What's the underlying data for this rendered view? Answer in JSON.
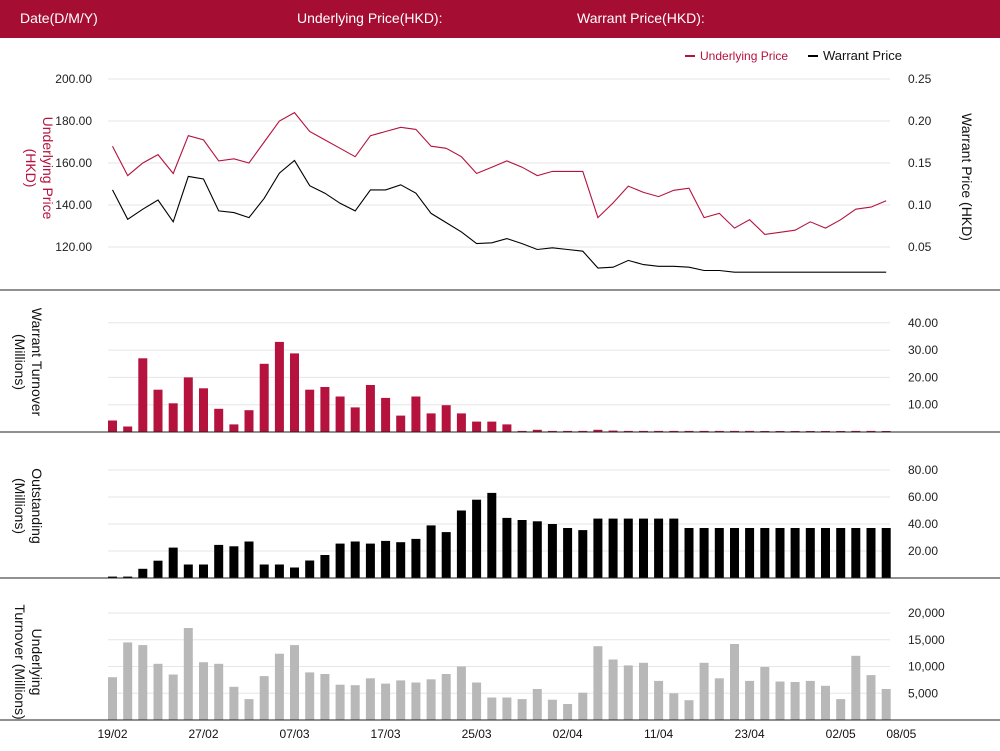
{
  "header": {
    "date_label": "Date(D/M/Y)",
    "underlying_label": "Underlying Price(HKD):",
    "warrant_label": "Warrant Price(HKD):"
  },
  "colors": {
    "header_bg": "#a50d33",
    "underlying": "#b5123e",
    "warrant": "#000000",
    "turnover_bar": "#b5123e",
    "outstanding_bar": "#000000",
    "underlying_turnover_bar": "#b8b8b8"
  },
  "chart_data": [
    {
      "type": "line",
      "legend": [
        "Underlying Price",
        "Warrant Price"
      ],
      "legend_position": "top-right",
      "ylabel_left": "Underlying Price (HKD)",
      "ylabel_right": "Warrant  Price (HKD)",
      "yticks_left": [
        "200.00",
        "180.00",
        "160.00",
        "140.00",
        "120.00"
      ],
      "yticks_right": [
        "0.25",
        "0.20",
        "0.15",
        "0.10",
        "0.05"
      ],
      "ylim_left": [
        100,
        204
      ],
      "ylim_right": [
        0,
        0.26
      ],
      "grid": true,
      "series": [
        {
          "name": "Underlying Price",
          "axis": "left",
          "values": [
            168,
            154,
            160,
            164,
            155,
            173,
            171,
            161,
            162,
            160,
            170,
            180,
            184,
            175,
            171,
            167,
            163,
            173,
            175,
            177,
            176,
            168,
            167,
            163,
            155,
            158,
            161,
            158,
            154,
            156,
            156,
            156,
            134,
            141,
            149,
            146,
            144,
            147,
            148,
            134,
            136,
            129,
            133,
            126,
            127,
            128,
            132,
            129,
            133,
            138,
            139,
            142
          ]
        },
        {
          "name": "Warrant Price",
          "axis": "right",
          "values": [
            0.118,
            0.083,
            0.095,
            0.106,
            0.08,
            0.134,
            0.131,
            0.093,
            0.091,
            0.085,
            0.108,
            0.138,
            0.153,
            0.123,
            0.114,
            0.102,
            0.093,
            0.118,
            0.118,
            0.124,
            0.114,
            0.09,
            0.079,
            0.068,
            0.054,
            0.055,
            0.06,
            0.054,
            0.047,
            0.049,
            0.047,
            0.045,
            0.025,
            0.026,
            0.034,
            0.029,
            0.027,
            0.027,
            0.026,
            0.022,
            0.022,
            0.02,
            0.02,
            0.02,
            0.02,
            0.02,
            0.02,
            0.02,
            0.02,
            0.02,
            0.02,
            0.02
          ]
        }
      ]
    },
    {
      "type": "bar",
      "ylabel": "Warrant  Turnover (Millions)",
      "yticks": [
        "40.00",
        "30.00",
        "20.00",
        "10.00"
      ],
      "ylim": [
        0,
        48
      ],
      "grid": true,
      "values": [
        4.2,
        2,
        27,
        15.5,
        10.5,
        20,
        16,
        8.5,
        2.8,
        8,
        25,
        33,
        28.8,
        15.5,
        16.5,
        13,
        9,
        17.2,
        12.5,
        6,
        13,
        6.8,
        9.8,
        6.8,
        3.8,
        3.8,
        2.8,
        0.4,
        0.8,
        0.4,
        0.4,
        0.4,
        0.8,
        0.5,
        0.4,
        0.4,
        0.4,
        0.4,
        0.4,
        0.4,
        0.4,
        0.4,
        0.4,
        0.1,
        0.1,
        0.1,
        0.1,
        0.1,
        0.1,
        0.4,
        0.4,
        0.1
      ]
    },
    {
      "type": "bar",
      "ylabel": "Outstanding (Millions)",
      "yticks": [
        "80.00",
        "60.00",
        "40.00",
        "20.00"
      ],
      "ylim": [
        0,
        84
      ],
      "grid": true,
      "values": [
        1,
        1,
        6.8,
        12.8,
        22.5,
        10,
        10,
        24.5,
        23.5,
        27,
        10,
        10,
        7.8,
        13,
        17,
        25.5,
        27,
        25.5,
        27.5,
        26.5,
        29,
        39,
        34,
        50,
        58,
        63,
        44.5,
        43,
        42,
        40,
        37,
        35.5,
        44,
        44,
        44,
        44,
        44,
        44,
        37,
        37,
        37,
        37,
        37,
        37,
        37,
        37,
        37,
        37,
        37,
        37,
        37,
        37
      ]
    },
    {
      "type": "bar",
      "ylabel": "Underlying Turnover (Millions)",
      "yticks": [
        "20,000",
        "15,000",
        "10,000",
        "5,000"
      ],
      "ylim": [
        0,
        22000
      ],
      "grid": true,
      "values": [
        8000,
        14500,
        14000,
        10500,
        8500,
        17200,
        10800,
        10500,
        6200,
        3900,
        8200,
        12400,
        14000,
        8900,
        8600,
        6600,
        6500,
        7800,
        6800,
        7400,
        7000,
        7600,
        8600,
        10000,
        7000,
        4200,
        4200,
        3900,
        5800,
        3800,
        3000,
        5100,
        13800,
        11300,
        10200,
        10700,
        7300,
        5000,
        3700,
        10700,
        7800,
        14200,
        7300,
        9900,
        7200,
        7100,
        7300,
        6400,
        3900,
        12000,
        8400,
        5800
      ]
    },
    {
      "type": "axis",
      "xticks": [
        "19/02",
        "27/02",
        "07/03",
        "17/03",
        "25/03",
        "02/04",
        "11/04",
        "23/04",
        "02/05",
        "08/05"
      ]
    }
  ]
}
